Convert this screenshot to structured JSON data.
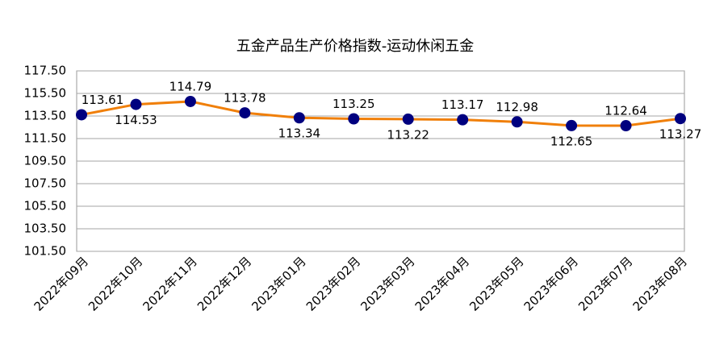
{
  "chart_data": {
    "type": "line",
    "title": "五金产品生产价格指数-运动休闲五金",
    "categories": [
      "2022年09月",
      "2022年10月",
      "2022年11月",
      "2022年12月",
      "2023年01月",
      "2023年02月",
      "2023年03月",
      "2023年04月",
      "2023年05月",
      "2023年06月",
      "2023年07月",
      "2023年08月"
    ],
    "series": [
      {
        "name": "运动休闲五金",
        "color": "#f07f09",
        "marker_color": "#00007f",
        "values": [
          113.61,
          114.53,
          114.79,
          113.78,
          113.34,
          113.25,
          113.22,
          113.17,
          112.98,
          112.65,
          112.64,
          113.27
        ]
      }
    ],
    "ylim": [
      101.5,
      117.5
    ],
    "yticks": [
      {
        "value": 101.5,
        "label": "101.50"
      },
      {
        "value": 103.5,
        "label": "103.50"
      },
      {
        "value": 105.5,
        "label": "105.50"
      },
      {
        "value": 107.5,
        "label": "107.50"
      },
      {
        "value": 109.5,
        "label": "109.50"
      },
      {
        "value": 111.5,
        "label": "111.50"
      },
      {
        "value": 113.5,
        "label": "113.50"
      },
      {
        "value": 115.5,
        "label": "115.50"
      },
      {
        "value": 117.5,
        "label": "117.50"
      }
    ],
    "grid": true
  }
}
